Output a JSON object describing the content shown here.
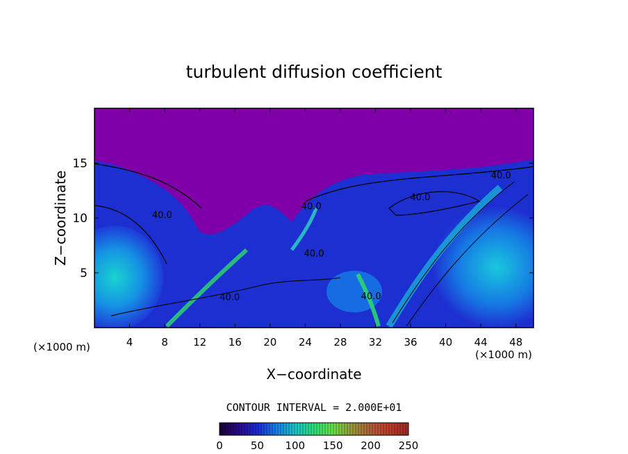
{
  "chart_data": {
    "type": "heatmap",
    "title": "turbulent diffusion coefficient",
    "xlabel": "X−coordinate",
    "ylabel": "Z−coordinate",
    "x_unit_left": "(×1000 m)",
    "x_unit_right": "(×1000 m)",
    "xlim": [
      0,
      50
    ],
    "ylim": [
      0,
      20
    ],
    "x_ticks": [
      4,
      8,
      12,
      16,
      20,
      24,
      28,
      32,
      36,
      40,
      44,
      48
    ],
    "y_ticks": [
      5,
      10,
      15
    ],
    "contour_interval_text": "CONTOUR INTERVAL = 2.000E+01",
    "contour_labels": [
      {
        "text": "40.0",
        "x": 46.3,
        "z": 13.6
      },
      {
        "text": "40.0",
        "x": 37.1,
        "z": 11.6
      },
      {
        "text": "40.0",
        "x": 7.7,
        "z": 10.0
      },
      {
        "text": "40.0",
        "x": 25.0,
        "z": 6.5
      },
      {
        "text": "40.0",
        "x": 24.7,
        "z": 10.8
      },
      {
        "text": "40.0",
        "x": 15.4,
        "z": 2.5
      },
      {
        "text": "40.0",
        "x": 31.5,
        "z": 2.6
      }
    ],
    "colorbar": {
      "min": 0,
      "max": 250,
      "ticks": [
        0,
        50,
        100,
        150,
        200,
        250
      ],
      "colors": [
        "#1a0033",
        "#2a0a8a",
        "#1a2ad6",
        "#1a7ee8",
        "#19c7c9",
        "#2be07a",
        "#6be04a",
        "#9a9a3a",
        "#b0603a",
        "#c23a2a",
        "#9a2a2a"
      ]
    },
    "field_colors": {
      "quiet_upper": "#7f00a8",
      "low": "#1b2bd8",
      "mid": "#1496e6",
      "moderate": "#18d2c8",
      "high": "#2cdd6a"
    },
    "grid": false
  }
}
